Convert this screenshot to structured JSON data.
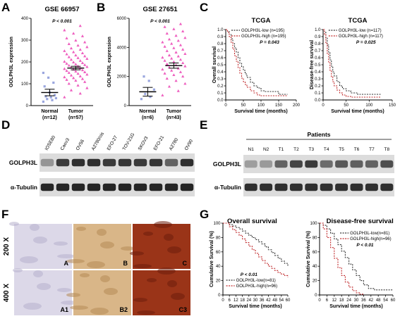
{
  "panel_labels": {
    "a": "A",
    "b": "B",
    "c": "C",
    "d": "D",
    "e": "E",
    "f": "F",
    "g": "G"
  },
  "colors": {
    "normal": "#9aa6de",
    "tumor": "#ee5fbf",
    "low_km": "#333333",
    "high_km": "#c0292b",
    "ihc_light": "#dcd8e8",
    "ihc_mid": "#d9b688",
    "ihc_dark": "#9a3418"
  },
  "chart_data": [
    {
      "panel": "A",
      "type": "scatter",
      "title": "GSE 66957",
      "ylabel": "GOLPH3L expression",
      "ylim": [
        0,
        400
      ],
      "yticks": [
        "0",
        "100",
        "200",
        "300",
        "400"
      ],
      "pvalue": "P < 0.001",
      "categories": [
        "Normal",
        "Tumor"
      ],
      "group_ns": [
        "(n=12)",
        "(n=57)"
      ],
      "means": [
        60,
        172
      ],
      "sem": [
        15,
        8
      ],
      "groups": [
        {
          "name": "Normal",
          "values": [
            18,
            25,
            30,
            34,
            38,
            42,
            48,
            60,
            88,
            105,
            128,
            150
          ]
        },
        {
          "name": "Tumor",
          "values": [
            38,
            55,
            70,
            80,
            92,
            100,
            108,
            114,
            118,
            122,
            126,
            130,
            134,
            138,
            142,
            146,
            150,
            153,
            156,
            159,
            162,
            165,
            168,
            171,
            174,
            177,
            180,
            183,
            186,
            189,
            192,
            195,
            198,
            201,
            205,
            210,
            214,
            218,
            222,
            226,
            230,
            235,
            240,
            245,
            250,
            256,
            262,
            268,
            275,
            282,
            290,
            298,
            308,
            318,
            330,
            345,
            365
          ]
        }
      ]
    },
    {
      "panel": "B",
      "type": "scatter",
      "title": "GSE 27651",
      "ylabel": "GOLPH3L expression",
      "ylim": [
        0,
        6000
      ],
      "yticks": [
        "0",
        "2000",
        "4000",
        "6000"
      ],
      "pvalue": "P < 0.001",
      "categories": [
        "Normal",
        "Tumor"
      ],
      "group_ns": [
        "(n=6)",
        "(n=43)"
      ],
      "means": [
        950,
        2750
      ],
      "sem": [
        300,
        180
      ],
      "groups": [
        {
          "name": "Normal",
          "values": [
            450,
            600,
            800,
            1100,
            1700,
            2000
          ]
        },
        {
          "name": "Tumor",
          "values": [
            700,
            1000,
            1300,
            1500,
            1700,
            1850,
            2000,
            2100,
            2200,
            2300,
            2400,
            2480,
            2550,
            2620,
            2700,
            2780,
            2850,
            2920,
            3000,
            3080,
            3150,
            3230,
            3300,
            3380,
            3450,
            3550,
            3650,
            3750,
            3850,
            3950,
            4050,
            4150,
            4250,
            4350,
            4450,
            4550,
            4650,
            4800,
            4950,
            5100,
            5250,
            5400,
            5600
          ]
        }
      ]
    },
    {
      "panel": "C",
      "type": "line",
      "title": "TCGA",
      "ylabel": "Overall survival",
      "xlabel": "Survival time (months)",
      "xlim": [
        0,
        200
      ],
      "xticks": [
        "0",
        "50",
        "100",
        "150",
        "200"
      ],
      "ylim": [
        0,
        1
      ],
      "yticks": [
        "0.0",
        "0.1",
        "0.2",
        "0.3",
        "0.4",
        "0.5",
        "0.6",
        "0.7",
        "0.8",
        "0.9",
        "1.0"
      ],
      "pvalue": "P = 0.043",
      "series": [
        {
          "name": "GOLPH3L-low (n=195)",
          "x": [
            0,
            5,
            10,
            15,
            20,
            25,
            30,
            35,
            40,
            45,
            50,
            55,
            60,
            70,
            80,
            90,
            100,
            110,
            130,
            150,
            175
          ],
          "y": [
            1.0,
            0.97,
            0.93,
            0.87,
            0.8,
            0.74,
            0.68,
            0.6,
            0.52,
            0.47,
            0.42,
            0.37,
            0.32,
            0.25,
            0.2,
            0.17,
            0.13,
            0.12,
            0.12,
            0.08,
            0.08
          ]
        },
        {
          "name": "GOLPH3L-high (n=195)",
          "x": [
            0,
            5,
            10,
            15,
            20,
            25,
            30,
            35,
            40,
            45,
            50,
            55,
            60,
            70,
            80,
            90,
            100,
            110,
            130,
            150,
            175
          ],
          "y": [
            1.0,
            0.96,
            0.9,
            0.82,
            0.72,
            0.63,
            0.55,
            0.46,
            0.38,
            0.31,
            0.26,
            0.22,
            0.18,
            0.13,
            0.1,
            0.07,
            0.06,
            0.06,
            0.06,
            0.06,
            0.06
          ]
        }
      ]
    },
    {
      "panel": "C",
      "type": "line",
      "title": "TCGA",
      "ylabel": "Disease-free survival",
      "xlabel": "Survival time (months)",
      "xlim": [
        0,
        150
      ],
      "xticks": [
        "0",
        "50",
        "100",
        "150"
      ],
      "ylim": [
        0,
        1
      ],
      "yticks": [
        "0.0",
        "0.1",
        "0.2",
        "0.3",
        "0.4",
        "0.5",
        "0.6",
        "0.7",
        "0.8",
        "0.9",
        "1.0"
      ],
      "pvalue": "P = 0.025",
      "series": [
        {
          "name": "GOLPH3L-low (n=117)",
          "x": [
            0,
            3,
            6,
            9,
            12,
            15,
            18,
            21,
            24,
            30,
            36,
            42,
            50,
            60,
            75,
            90,
            110,
            125
          ],
          "y": [
            1.0,
            0.96,
            0.88,
            0.78,
            0.67,
            0.57,
            0.48,
            0.4,
            0.34,
            0.26,
            0.2,
            0.16,
            0.13,
            0.1,
            0.08,
            0.08,
            0.08,
            0.08
          ]
        },
        {
          "name": "GOLPH3L-high (n=117)",
          "x": [
            0,
            3,
            6,
            9,
            12,
            15,
            18,
            21,
            24,
            30,
            36,
            42,
            50,
            60,
            75,
            90,
            110,
            125
          ],
          "y": [
            1.0,
            0.93,
            0.8,
            0.66,
            0.53,
            0.42,
            0.33,
            0.26,
            0.2,
            0.14,
            0.1,
            0.07,
            0.05,
            0.04,
            0.04,
            0.04,
            0.04,
            0.04
          ]
        }
      ]
    },
    {
      "panel": "G",
      "type": "line",
      "title": "Overall survival",
      "ylabel": "Cumulative Survival (%)",
      "xlabel": "Survival time (months)",
      "xlim": [
        0,
        60
      ],
      "xticks": [
        "0",
        "6",
        "12",
        "18",
        "24",
        "30",
        "36",
        "42",
        "48",
        "54",
        "60"
      ],
      "ylim": [
        0,
        100
      ],
      "yticks": [
        "0",
        "20",
        "40",
        "60",
        "80",
        "100"
      ],
      "pvalue": "P < 0.01",
      "series": [
        {
          "name": "GOLPH3L-low(n=81)",
          "x": [
            0,
            6,
            9,
            12,
            15,
            18,
            21,
            24,
            27,
            30,
            33,
            36,
            39,
            42,
            45,
            48,
            51,
            54,
            57,
            60
          ],
          "y": [
            100,
            98,
            96,
            94,
            92,
            89,
            86,
            83,
            80,
            77,
            74,
            71,
            67,
            63,
            59,
            55,
            51,
            47,
            44,
            40
          ]
        },
        {
          "name": "GOLPH3L-high(n=96)",
          "x": [
            0,
            6,
            9,
            12,
            15,
            18,
            21,
            24,
            27,
            30,
            33,
            36,
            39,
            42,
            45,
            48,
            51,
            54,
            57,
            60
          ],
          "y": [
            100,
            95,
            91,
            87,
            83,
            78,
            73,
            68,
            63,
            58,
            53,
            48,
            44,
            40,
            37,
            34,
            31,
            29,
            27,
            25
          ]
        }
      ]
    },
    {
      "panel": "G",
      "type": "line",
      "title": "Disease-free survival",
      "ylabel": "Cumulative Survival (%)",
      "xlabel": "Survival time (months)",
      "xlim": [
        0,
        60
      ],
      "xticks": [
        "0",
        "6",
        "12",
        "18",
        "24",
        "30",
        "36",
        "42",
        "48",
        "54",
        "60"
      ],
      "ylim": [
        0,
        100
      ],
      "yticks": [
        "0",
        "20",
        "40",
        "60",
        "80",
        "100"
      ],
      "pvalue": "P < 0.01",
      "series": [
        {
          "name": "GOLPH3L-low(n=81)",
          "x": [
            0,
            3,
            6,
            9,
            12,
            15,
            18,
            21,
            24,
            27,
            30,
            33,
            36,
            40,
            45,
            50,
            55,
            60
          ],
          "y": [
            100,
            97,
            92,
            86,
            78,
            70,
            61,
            52,
            43,
            35,
            27,
            20,
            14,
            9,
            7,
            7,
            7,
            7
          ]
        },
        {
          "name": "GOLPH3L-high(n=96)",
          "x": [
            0,
            3,
            6,
            9,
            12,
            15,
            18,
            21,
            24,
            27,
            30,
            33,
            36
          ],
          "y": [
            100,
            92,
            80,
            66,
            51,
            38,
            27,
            18,
            11,
            6,
            3,
            1,
            0
          ]
        }
      ]
    }
  ],
  "western_d": {
    "lanes": [
      "IOSE80",
      "Caov3",
      "OV56",
      "A2780/cis",
      "EFO-27",
      "TOV-21G",
      "SKOV3",
      "EFO-21",
      "A2780",
      "OV90"
    ],
    "protein_label": "GOLPH3L",
    "loading_label": "α-Tubulin",
    "golph3l_intensity": [
      0.35,
      0.8,
      0.85,
      0.85,
      0.8,
      0.82,
      0.8,
      0.82,
      0.6,
      0.85
    ],
    "tubulin_intensity": [
      0.9,
      0.9,
      0.9,
      0.9,
      0.9,
      0.9,
      0.9,
      0.9,
      0.9,
      0.9
    ]
  },
  "western_e": {
    "header": "Patients",
    "lanes": [
      "N1",
      "N2",
      "T1",
      "T2",
      "T3",
      "T4",
      "T5",
      "T6",
      "T7",
      "T8"
    ],
    "protein_label": "GOLPH3L",
    "loading_label": "α-Tubulin",
    "golph3l_intensity": [
      0.3,
      0.32,
      0.6,
      0.75,
      0.8,
      0.55,
      0.65,
      0.62,
      0.6,
      0.7
    ],
    "tubulin_intensity": [
      0.85,
      0.85,
      0.85,
      0.85,
      0.85,
      0.85,
      0.85,
      0.85,
      0.85,
      0.85
    ]
  },
  "ihc_f": {
    "rows": [
      "200 X",
      "400 X"
    ],
    "tiles": [
      [
        "A",
        "B",
        "C"
      ],
      [
        "A1",
        "B2",
        "C3"
      ]
    ],
    "stain_levels": [
      "light",
      "mid",
      "dark"
    ]
  }
}
